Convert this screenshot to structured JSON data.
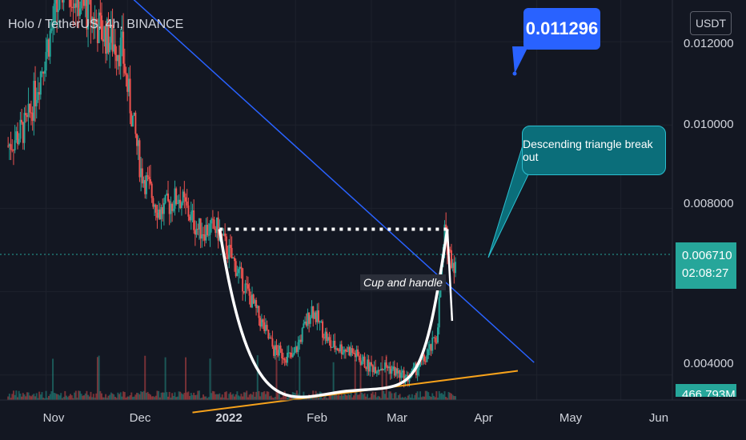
{
  "header": {
    "title": "Holo / TetherUS, 4h, BINANCE",
    "currency_button": "USDT"
  },
  "annotations": {
    "price_bubble": "0.011296",
    "cup_label": "Cup and handle",
    "callout": "Descending triangle break out"
  },
  "price_axis": {
    "ticks": [
      "0.012000",
      "0.010000",
      "0.008000",
      "0.004000"
    ],
    "current_price": "0.006710",
    "countdown": "02:08:27",
    "volume": "466.793M"
  },
  "time_axis": {
    "ticks": [
      "Nov",
      "Dec",
      "2022",
      "Feb",
      "Mar",
      "Apr",
      "May",
      "Jun"
    ]
  },
  "colors": {
    "background": "#131722",
    "up": "#26a69a",
    "down": "#ef5350",
    "trendline": "#2962ff",
    "support": "#f7a21b",
    "pattern": "#ffffff"
  },
  "chart_data": {
    "type": "line",
    "title": "Holo / TetherUS, 4h, BINANCE",
    "xlabel": "",
    "ylabel": "",
    "ylim": [
      0.0034,
      0.013
    ],
    "x_range": [
      "2021-10-15",
      "2022-06-20"
    ],
    "grid": true,
    "series": [
      {
        "x": [
          "2021-10-18",
          "2021-10-25",
          "2021-11-01",
          "2021-11-08",
          "2021-11-15",
          "2021-11-22",
          "2021-11-29",
          "2021-12-01",
          "2021-12-06",
          "2021-12-13",
          "2021-12-20",
          "2021-12-27",
          "2022-01-03",
          "2022-01-10",
          "2022-01-17",
          "2022-01-24",
          "2022-01-31",
          "2022-02-07",
          "2022-02-14",
          "2022-02-21",
          "2022-02-28",
          "2022-03-07",
          "2022-03-14",
          "2022-03-21",
          "2022-03-25",
          "2022-03-28",
          "2022-03-30",
          "2022-04-01"
        ],
        "values": [
          0.0095,
          0.01,
          0.0118,
          0.0135,
          0.0128,
          0.0122,
          0.0118,
          0.0109,
          0.0089,
          0.0079,
          0.0083,
          0.0075,
          0.0075,
          0.0066,
          0.0056,
          0.0046,
          0.0044,
          0.0056,
          0.0047,
          0.0046,
          0.0042,
          0.0042,
          0.0039,
          0.0044,
          0.0049,
          0.0074,
          0.0069,
          0.0066
        ]
      }
    ],
    "trendlines": [
      {
        "name": "descending resistance",
        "from": [
          "2021-11-25",
          0.0135
        ],
        "to": [
          "2022-04-30",
          0.0043
        ]
      },
      {
        "name": "ascending support",
        "from": [
          "2021-12-25",
          0.0031
        ],
        "to": [
          "2022-04-24",
          0.0041
        ]
      }
    ],
    "pattern": {
      "rim_level": 0.0075,
      "rim_start": "2022-01-04",
      "rim_end": "2022-03-29",
      "bottom": [
        "2022-02-18",
        0.0036
      ]
    },
    "current_price": 0.00671,
    "volume": "466.793M"
  }
}
